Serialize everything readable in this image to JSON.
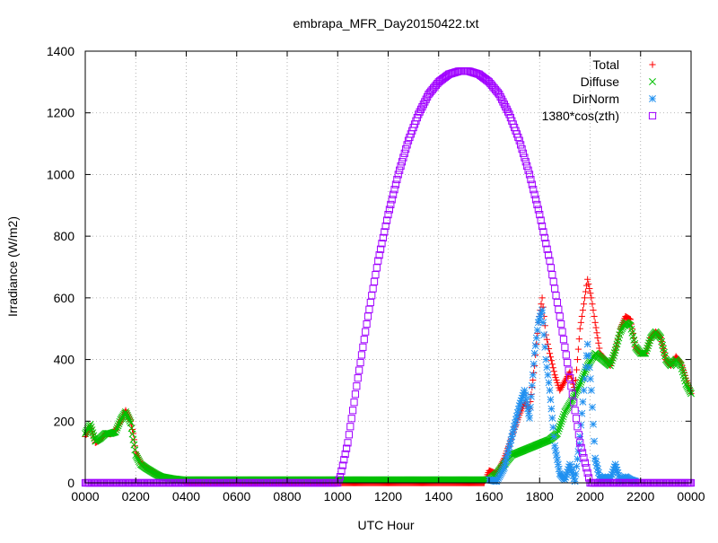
{
  "chart_data": {
    "type": "scatter",
    "title": "embrapa_MFR_Day20150422.txt",
    "xlabel": "UTC Hour",
    "ylabel": "Irradiance (W/m2)",
    "xlim": [
      0,
      24
    ],
    "ylim": [
      0,
      1400
    ],
    "x_ticks": [
      0,
      2,
      4,
      6,
      8,
      10,
      12,
      14,
      16,
      18,
      20,
      22,
      24
    ],
    "x_tick_labels": [
      "0000",
      "0200",
      "0400",
      "0600",
      "0800",
      "1000",
      "1200",
      "1400",
      "1600",
      "1800",
      "2000",
      "2200",
      "0000"
    ],
    "y_ticks": [
      0,
      200,
      400,
      600,
      800,
      1000,
      1200,
      1400
    ],
    "grid": true,
    "legend_position": "top-right",
    "series": [
      {
        "name": "Total",
        "marker": "plus",
        "color": "#ff0000",
        "points": [
          [
            0.0,
            150
          ],
          [
            0.2,
            185
          ],
          [
            0.4,
            130
          ],
          [
            0.6,
            140
          ],
          [
            0.8,
            160
          ],
          [
            1.0,
            158
          ],
          [
            1.2,
            170
          ],
          [
            1.4,
            200
          ],
          [
            1.6,
            235
          ],
          [
            1.8,
            200
          ],
          [
            1.9,
            160
          ],
          [
            2.0,
            100
          ],
          [
            2.2,
            65
          ],
          [
            2.4,
            50
          ],
          [
            2.6,
            40
          ],
          [
            2.8,
            30
          ],
          [
            3.0,
            22
          ],
          [
            3.2,
            18
          ],
          [
            3.4,
            15
          ],
          [
            3.6,
            12
          ],
          [
            3.8,
            8
          ],
          [
            4.0,
            2
          ],
          [
            6.0,
            0
          ],
          [
            8.0,
            0
          ],
          [
            10.0,
            0
          ],
          [
            14.0,
            0
          ],
          [
            15.8,
            0
          ],
          [
            16.0,
            40
          ],
          [
            16.3,
            30
          ],
          [
            16.6,
            80
          ],
          [
            16.9,
            150
          ],
          [
            17.2,
            220
          ],
          [
            17.4,
            260
          ],
          [
            17.6,
            240
          ],
          [
            17.8,
            380
          ],
          [
            17.95,
            520
          ],
          [
            18.1,
            600
          ],
          [
            18.25,
            480
          ],
          [
            18.4,
            420
          ],
          [
            18.6,
            350
          ],
          [
            18.8,
            300
          ],
          [
            19.0,
            330
          ],
          [
            19.2,
            360
          ],
          [
            19.4,
            300
          ],
          [
            19.6,
            500
          ],
          [
            19.75,
            580
          ],
          [
            19.9,
            660
          ],
          [
            20.05,
            600
          ],
          [
            20.2,
            520
          ],
          [
            20.4,
            420
          ],
          [
            20.6,
            400
          ],
          [
            20.8,
            380
          ],
          [
            21.0,
            430
          ],
          [
            21.2,
            500
          ],
          [
            21.4,
            540
          ],
          [
            21.6,
            530
          ],
          [
            21.8,
            440
          ],
          [
            22.0,
            420
          ],
          [
            22.2,
            420
          ],
          [
            22.4,
            470
          ],
          [
            22.6,
            490
          ],
          [
            22.8,
            470
          ],
          [
            23.0,
            400
          ],
          [
            23.2,
            380
          ],
          [
            23.4,
            410
          ],
          [
            23.6,
            390
          ],
          [
            23.8,
            340
          ],
          [
            24.0,
            290
          ]
        ]
      },
      {
        "name": "Diffuse",
        "marker": "cross",
        "color": "#00c000",
        "points": [
          [
            0.0,
            160
          ],
          [
            0.2,
            190
          ],
          [
            0.4,
            135
          ],
          [
            0.6,
            145
          ],
          [
            0.8,
            160
          ],
          [
            1.0,
            160
          ],
          [
            1.2,
            165
          ],
          [
            1.4,
            205
          ],
          [
            1.6,
            230
          ],
          [
            1.8,
            195
          ],
          [
            1.9,
            140
          ],
          [
            2.0,
            90
          ],
          [
            2.2,
            60
          ],
          [
            2.4,
            48
          ],
          [
            2.6,
            38
          ],
          [
            2.8,
            28
          ],
          [
            3.0,
            20
          ],
          [
            3.2,
            17
          ],
          [
            3.4,
            14
          ],
          [
            3.6,
            12
          ],
          [
            3.8,
            10
          ],
          [
            16.0,
            10
          ],
          [
            16.3,
            30
          ],
          [
            16.6,
            60
          ],
          [
            16.9,
            90
          ],
          [
            17.2,
            100
          ],
          [
            17.5,
            110
          ],
          [
            17.8,
            120
          ],
          [
            18.1,
            130
          ],
          [
            18.4,
            140
          ],
          [
            18.7,
            160
          ],
          [
            19.0,
            230
          ],
          [
            19.3,
            270
          ],
          [
            19.6,
            320
          ],
          [
            19.9,
            380
          ],
          [
            20.2,
            420
          ],
          [
            20.5,
            400
          ],
          [
            20.8,
            380
          ],
          [
            21.0,
            430
          ],
          [
            21.2,
            490
          ],
          [
            21.4,
            520
          ],
          [
            21.6,
            510
          ],
          [
            21.8,
            440
          ],
          [
            22.0,
            420
          ],
          [
            22.2,
            420
          ],
          [
            22.4,
            470
          ],
          [
            22.6,
            490
          ],
          [
            22.8,
            470
          ],
          [
            23.0,
            400
          ],
          [
            23.2,
            380
          ],
          [
            23.4,
            400
          ],
          [
            23.6,
            380
          ],
          [
            23.8,
            320
          ],
          [
            24.0,
            290
          ]
        ]
      },
      {
        "name": "DirNorm",
        "marker": "star",
        "color": "#2090f0",
        "points": [
          [
            16.0,
            10
          ],
          [
            16.3,
            5
          ],
          [
            16.6,
            50
          ],
          [
            16.9,
            150
          ],
          [
            17.2,
            250
          ],
          [
            17.4,
            300
          ],
          [
            17.6,
            210
          ],
          [
            17.8,
            420
          ],
          [
            17.95,
            520
          ],
          [
            18.1,
            560
          ],
          [
            18.25,
            400
          ],
          [
            18.4,
            300
          ],
          [
            18.6,
            120
          ],
          [
            18.8,
            30
          ],
          [
            19.0,
            10
          ],
          [
            19.2,
            60
          ],
          [
            19.4,
            5
          ],
          [
            19.6,
            150
          ],
          [
            19.75,
            300
          ],
          [
            19.9,
            450
          ],
          [
            20.05,
            300
          ],
          [
            20.2,
            80
          ],
          [
            20.4,
            10
          ],
          [
            20.6,
            20
          ],
          [
            20.8,
            10
          ],
          [
            21.0,
            60
          ],
          [
            21.2,
            5
          ],
          [
            21.4,
            20
          ],
          [
            21.6,
            10
          ],
          [
            21.8,
            5
          ]
        ]
      },
      {
        "name": "1380*cos(zth)",
        "marker": "square",
        "color": "#a000ff",
        "points": [
          [
            0.0,
            0
          ],
          [
            2.0,
            0
          ],
          [
            4.0,
            0
          ],
          [
            6.0,
            0
          ],
          [
            8.0,
            0
          ],
          [
            10.0,
            0
          ],
          [
            10.1,
            20
          ],
          [
            10.4,
            130
          ],
          [
            10.8,
            340
          ],
          [
            11.2,
            540
          ],
          [
            11.6,
            720
          ],
          [
            12.0,
            870
          ],
          [
            12.4,
            1000
          ],
          [
            12.8,
            1110
          ],
          [
            13.2,
            1195
          ],
          [
            13.6,
            1260
          ],
          [
            14.0,
            1300
          ],
          [
            14.4,
            1325
          ],
          [
            14.8,
            1335
          ],
          [
            15.2,
            1335
          ],
          [
            15.6,
            1325
          ],
          [
            16.0,
            1300
          ],
          [
            16.4,
            1260
          ],
          [
            16.8,
            1195
          ],
          [
            17.2,
            1110
          ],
          [
            17.6,
            1000
          ],
          [
            18.0,
            870
          ],
          [
            18.4,
            720
          ],
          [
            18.8,
            540
          ],
          [
            19.2,
            340
          ],
          [
            19.6,
            130
          ],
          [
            20.0,
            0
          ],
          [
            20.4,
            0
          ],
          [
            21.0,
            0
          ],
          [
            22.0,
            0
          ],
          [
            23.0,
            0
          ],
          [
            24.0,
            0
          ]
        ]
      }
    ]
  }
}
